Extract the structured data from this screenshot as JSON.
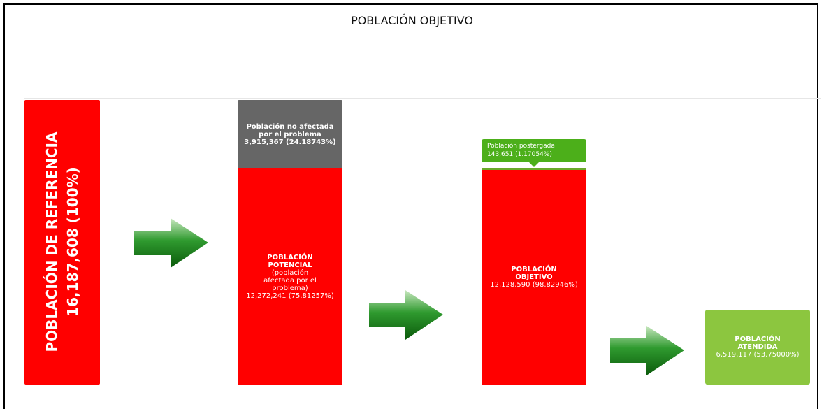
{
  "title": "POBLACIÓN OBJETIVO",
  "reference": {
    "label": "POBLACIÓN DE REFERENCIA",
    "value": "16,187,608 (100%)"
  },
  "potential": {
    "unaffected": {
      "label": "Población no afectada por el problema",
      "value": "3,915,367 (24.18743%)"
    },
    "label": "POBLACIÓN POTENCIAL",
    "note": "(población afectada por el problema)",
    "value": "12,272,241 (75.81257%)"
  },
  "objective": {
    "postponed": {
      "label": "Población postergada",
      "value": "143,651 (1.17054%)"
    },
    "label": "POBLACIÓN OBJETIVO",
    "value": "12,128,590 (98.82946%)"
  },
  "served": {
    "label": "POBLACIÓN ATENDIDA",
    "value": "6,519,117 (53.75000%)"
  }
}
